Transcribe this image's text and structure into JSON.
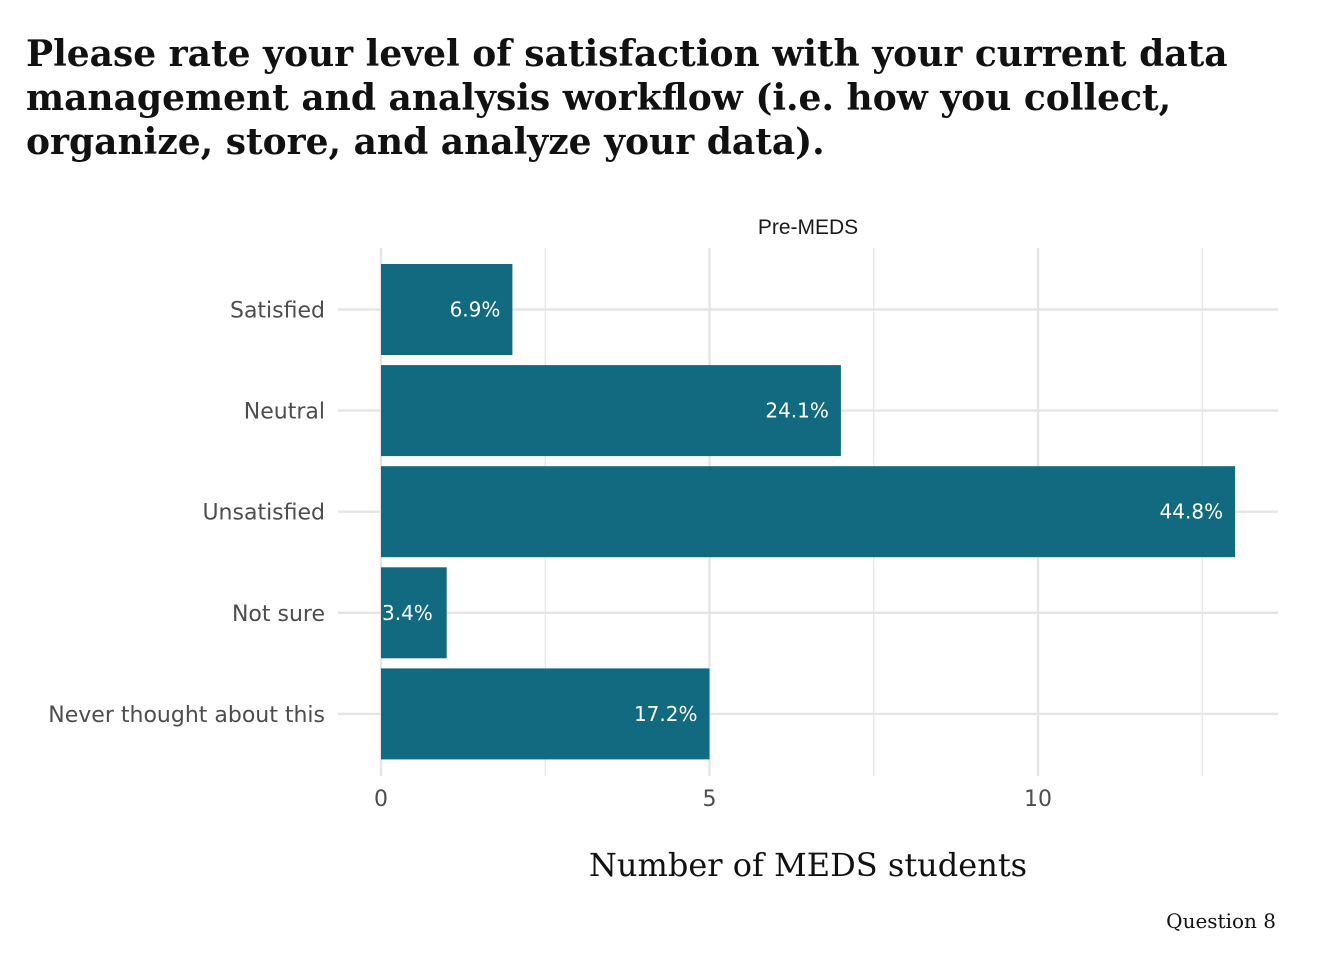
{
  "title": "Please rate your level of satisfaction with your current data management and analysis workflow (i.e. how you collect, organize, store, and analyze your data).",
  "caption": "Question 8",
  "colors": {
    "bar": "#116A7F",
    "grid": "#e5e5e5",
    "axis_text": "#4d4d4d"
  },
  "chart_data": {
    "type": "bar",
    "orientation": "horizontal",
    "facet": "Pre-MEDS",
    "categories": [
      "Satisfied",
      "Neutral",
      "Unsatisfied",
      "Not sure",
      "Never thought about this"
    ],
    "values": [
      2,
      7,
      13,
      1,
      5
    ],
    "labels": [
      "6.9%",
      "24.1%",
      "44.8%",
      "3.4%",
      "17.2%"
    ],
    "xlabel": "Number of MEDS students",
    "ylabel": "",
    "xlim": [
      0,
      13.6
    ],
    "xticks": [
      0,
      5,
      10
    ],
    "xtick_labels": [
      "0",
      "5",
      "10"
    ],
    "minor_xticks": [
      2.5,
      7.5,
      12.5
    ],
    "grid": true,
    "legend": "none"
  }
}
